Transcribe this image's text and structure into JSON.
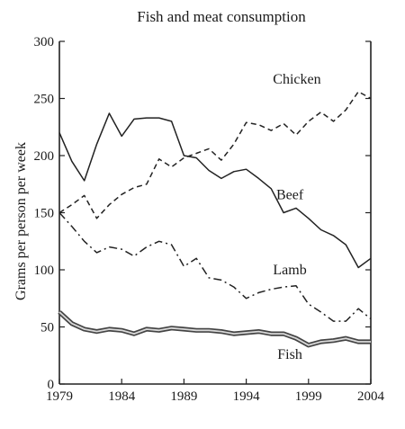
{
  "chart_data": {
    "type": "line",
    "title": "Fish and meat consumption",
    "xlabel": "",
    "ylabel": "Grams per person per week",
    "xlim": [
      1979,
      2004
    ],
    "ylim": [
      0,
      300
    ],
    "x_ticks": [
      "1979",
      "1984",
      "1989",
      "1994",
      "1999",
      "2004"
    ],
    "y_ticks": [
      "0",
      "50",
      "100",
      "150",
      "200",
      "250",
      "300"
    ],
    "grid": false,
    "legend": "none",
    "series": [
      {
        "name": "Chicken",
        "style": "dashed",
        "color": "#222222",
        "points": [
          [
            1979,
            150
          ],
          [
            1980,
            157
          ],
          [
            1981,
            165
          ],
          [
            1982,
            145
          ],
          [
            1983,
            157
          ],
          [
            1984,
            166
          ],
          [
            1985,
            172
          ],
          [
            1986,
            175
          ],
          [
            1987,
            197
          ],
          [
            1988,
            190
          ],
          [
            1989,
            198
          ],
          [
            1990,
            202
          ],
          [
            1991,
            206
          ],
          [
            1992,
            196
          ],
          [
            1993,
            210
          ],
          [
            1994,
            229
          ],
          [
            1995,
            227
          ],
          [
            1996,
            222
          ],
          [
            1997,
            228
          ],
          [
            1998,
            218
          ],
          [
            1999,
            230
          ],
          [
            2000,
            238
          ],
          [
            2001,
            230
          ],
          [
            2002,
            240
          ],
          [
            2003,
            256
          ],
          [
            2004,
            250
          ]
        ]
      },
      {
        "name": "Beef",
        "style": "solid",
        "color": "#222222",
        "points": [
          [
            1979,
            220
          ],
          [
            1980,
            195
          ],
          [
            1981,
            178
          ],
          [
            1982,
            210
          ],
          [
            1983,
            237
          ],
          [
            1984,
            217
          ],
          [
            1985,
            232
          ],
          [
            1986,
            233
          ],
          [
            1987,
            233
          ],
          [
            1988,
            230
          ],
          [
            1989,
            200
          ],
          [
            1990,
            198
          ],
          [
            1991,
            187
          ],
          [
            1992,
            180
          ],
          [
            1993,
            186
          ],
          [
            1994,
            188
          ],
          [
            1995,
            180
          ],
          [
            1996,
            171
          ],
          [
            1997,
            150
          ],
          [
            1998,
            154
          ],
          [
            1999,
            145
          ],
          [
            2000,
            135
          ],
          [
            2001,
            130
          ],
          [
            2002,
            122
          ],
          [
            2003,
            102
          ],
          [
            2004,
            110
          ]
        ]
      },
      {
        "name": "Lamb",
        "style": "dashdot",
        "color": "#222222",
        "points": [
          [
            1979,
            150
          ],
          [
            1980,
            138
          ],
          [
            1981,
            125
          ],
          [
            1982,
            115
          ],
          [
            1983,
            120
          ],
          [
            1984,
            118
          ],
          [
            1985,
            112
          ],
          [
            1986,
            120
          ],
          [
            1987,
            125
          ],
          [
            1988,
            122
          ],
          [
            1989,
            103
          ],
          [
            1990,
            110
          ],
          [
            1991,
            93
          ],
          [
            1992,
            91
          ],
          [
            1993,
            85
          ],
          [
            1994,
            75
          ],
          [
            1995,
            80
          ],
          [
            1996,
            83
          ],
          [
            1997,
            85
          ],
          [
            1998,
            86
          ],
          [
            1999,
            70
          ],
          [
            2000,
            63
          ],
          [
            2001,
            55
          ],
          [
            2002,
            55
          ],
          [
            2003,
            66
          ],
          [
            2004,
            57
          ]
        ]
      },
      {
        "name": "Fish",
        "style": "double",
        "color": "#444444",
        "points": [
          [
            1979,
            63
          ],
          [
            1980,
            53
          ],
          [
            1981,
            48
          ],
          [
            1982,
            46
          ],
          [
            1983,
            48
          ],
          [
            1984,
            47
          ],
          [
            1985,
            44
          ],
          [
            1986,
            48
          ],
          [
            1987,
            47
          ],
          [
            1988,
            49
          ],
          [
            1989,
            48
          ],
          [
            1990,
            47
          ],
          [
            1991,
            47
          ],
          [
            1992,
            46
          ],
          [
            1993,
            44
          ],
          [
            1994,
            45
          ],
          [
            1995,
            46
          ],
          [
            1996,
            44
          ],
          [
            1997,
            44
          ],
          [
            1998,
            40
          ],
          [
            1999,
            34
          ],
          [
            2000,
            37
          ],
          [
            2001,
            38
          ],
          [
            2002,
            40
          ],
          [
            2003,
            37
          ],
          [
            2004,
            37
          ]
        ]
      }
    ]
  }
}
